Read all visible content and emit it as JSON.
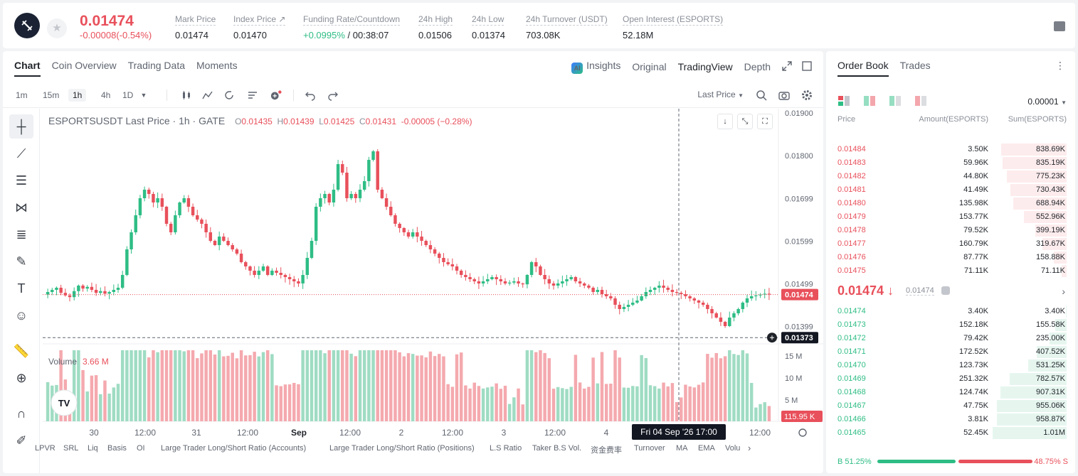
{
  "ticker": {
    "last_price": "0.01474",
    "change": "-0.00008(-0.54%)",
    "stats": [
      {
        "label": "Mark Price",
        "value": "0.01474"
      },
      {
        "label": "Index Price ↗",
        "value": "0.01470"
      },
      {
        "label": "Funding Rate/Countdown",
        "value_green": "+0.0995%",
        "value": " / 00:38:07"
      },
      {
        "label": "24h High",
        "value": "0.01506"
      },
      {
        "label": "24h Low",
        "value": "0.01374"
      },
      {
        "label": "24h Turnover (USDT)",
        "value": "703.08K"
      },
      {
        "label": "Open Interest (ESPORTS)",
        "value": "52.18M"
      }
    ]
  },
  "chart_tabs": [
    "Chart",
    "Coin Overview",
    "Trading Data",
    "Moments"
  ],
  "view_tabs": {
    "insights": "Insights",
    "original": "Original",
    "tradingview": "TradingView",
    "depth": "Depth",
    "ai_badge": "AI"
  },
  "timeframes": [
    "1m",
    "15m",
    "1h",
    "4h",
    "1D"
  ],
  "price_source": "Last Price",
  "legend": {
    "title": "ESPORTSUSDT Last Price · 1h · GATE",
    "o_lbl": "O",
    "o": "0.01435",
    "h_lbl": "H",
    "h": "0.01439",
    "l_lbl": "L",
    "l": "0.01425",
    "c_lbl": "C",
    "c": "0.01431",
    "chg": "-0.00005 (−0.28%)"
  },
  "volume_legend": {
    "label": "Volume",
    "value": "3.66 M"
  },
  "chart_data": {
    "type": "candlestick",
    "price_axis": [
      "0.01900",
      "0.01800",
      "0.01699",
      "0.01599",
      "0.01499",
      "0.01399"
    ],
    "volume_axis": [
      "15 M",
      "10 M",
      "5 M"
    ],
    "x_ticks": [
      "30",
      "12:00",
      "31",
      "12:00",
      "Sep",
      "12:00",
      "2",
      "12:00",
      "3",
      "12:00",
      "4",
      "12:00"
    ],
    "current_price_tag": "0.01474",
    "crosshair_price_tag": "0.01373",
    "crosshair_time": "Fri 04 Sep '26   17:00",
    "current_volume_tag": "115.95 K",
    "ylim": [
      0.0136,
      0.0191
    ],
    "closes": [
      0.0148,
      0.01485,
      0.0149,
      0.01478,
      0.01472,
      0.01468,
      0.01482,
      0.01495,
      0.01488,
      0.01492,
      0.01485,
      0.01478,
      0.01482,
      0.01476,
      0.0148,
      0.01485,
      0.0149,
      0.0152,
      0.0158,
      0.0162,
      0.0166,
      0.017,
      0.0172,
      0.0171,
      0.0169,
      0.017,
      0.0168,
      0.0164,
      0.0162,
      0.0166,
      0.0169,
      0.017,
      0.0168,
      0.0166,
      0.0165,
      0.0164,
      0.0162,
      0.016,
      0.0159,
      0.0161,
      0.016,
      0.0159,
      0.0158,
      0.0157,
      0.0155,
      0.0154,
      0.0153,
      0.0152,
      0.0153,
      0.0154,
      0.0152,
      0.0153,
      0.01525,
      0.0152,
      0.01515,
      0.0151,
      0.01505,
      0.015,
      0.0152,
      0.0156,
      0.016,
      0.0168,
      0.017,
      0.0171,
      0.0169,
      0.0172,
      0.0178,
      0.0176,
      0.017,
      0.0171,
      0.017,
      0.0172,
      0.0174,
      0.0179,
      0.0181,
      0.0172,
      0.017,
      0.0168,
      0.0166,
      0.0164,
      0.0163,
      0.0162,
      0.0161,
      0.0162,
      0.0161,
      0.016,
      0.0159,
      0.0158,
      0.0157,
      0.0156,
      0.0155,
      0.01545,
      0.0154,
      0.0153,
      0.0152,
      0.01515,
      0.0151,
      0.01505,
      0.015,
      0.01505,
      0.0151,
      0.01515,
      0.0151,
      0.01505,
      0.015,
      0.01502,
      0.01505,
      0.015,
      0.01498,
      0.0152,
      0.0155,
      0.0154,
      0.0152,
      0.0151,
      0.015,
      0.01495,
      0.015,
      0.01505,
      0.0151,
      0.01515,
      0.01505,
      0.015,
      0.01495,
      0.0149,
      0.0148,
      0.01485,
      0.01475,
      0.0147,
      0.01465,
      0.0145,
      0.0144,
      0.01445,
      0.0145,
      0.01455,
      0.0146,
      0.0147,
      0.0148,
      0.01485,
      0.0149,
      0.01495,
      0.0149,
      0.01485,
      0.0148,
      0.01478,
      0.01475,
      0.0147,
      0.01465,
      0.0146,
      0.01455,
      0.0145,
      0.0144,
      0.0143,
      0.0142,
      0.0141,
      0.014,
      0.0142,
      0.0143,
      0.0144,
      0.01455,
      0.01465,
      0.0147,
      0.01472,
      0.01474,
      0.01476,
      0.01474
    ]
  },
  "drawing_tools": [
    "crosshair-icon",
    "trend-line-icon",
    "horizontal-lines-icon",
    "pattern-icon",
    "fib-icon",
    "brush-icon",
    "text-icon",
    "emoji-icon",
    "ruler-icon",
    "zoom-in-icon",
    "magnet-icon",
    "pencil-icon"
  ],
  "indicators": [
    "LPVR",
    "SRL",
    "Liq",
    "Basis",
    "OI",
    "Large Trader Long/Short Ratio (Accounts)",
    "Large Trader Long/Short Ratio (Positions)",
    "L.S Ratio",
    "Taker B.S Vol.",
    "资金费率",
    "Turnover",
    "MA",
    "EMA",
    "Volu"
  ],
  "order_book": {
    "tabs": [
      "Order Book",
      "Trades"
    ],
    "precision": "0.00001",
    "headers": {
      "price": "Price",
      "amount": "Amount(ESPORTS)",
      "sum": "Sum(ESPORTS)"
    },
    "asks": [
      {
        "price": "0.01484",
        "amount": "3.50K",
        "sum": "838.69K",
        "depth": 0.88
      },
      {
        "price": "0.01483",
        "amount": "59.96K",
        "sum": "835.19K",
        "depth": 0.87
      },
      {
        "price": "0.01482",
        "amount": "44.80K",
        "sum": "775.23K",
        "depth": 0.81
      },
      {
        "price": "0.01481",
        "amount": "41.49K",
        "sum": "730.43K",
        "depth": 0.76
      },
      {
        "price": "0.01480",
        "amount": "135.98K",
        "sum": "688.94K",
        "depth": 0.72
      },
      {
        "price": "0.01479",
        "amount": "153.77K",
        "sum": "552.96K",
        "depth": 0.58
      },
      {
        "price": "0.01478",
        "amount": "79.52K",
        "sum": "399.19K",
        "depth": 0.42
      },
      {
        "price": "0.01477",
        "amount": "160.79K",
        "sum": "319.67K",
        "depth": 0.33
      },
      {
        "price": "0.01476",
        "amount": "87.77K",
        "sum": "158.88K",
        "depth": 0.17
      },
      {
        "price": "0.01475",
        "amount": "71.11K",
        "sum": "71.11K",
        "depth": 0.07
      }
    ],
    "mid_price": "0.01474 ↓",
    "mark_price": "0.01474",
    "bids": [
      {
        "price": "0.01474",
        "amount": "3.40K",
        "sum": "3.40K",
        "depth": 0.01
      },
      {
        "price": "0.01473",
        "amount": "152.18K",
        "sum": "155.58K",
        "depth": 0.15
      },
      {
        "price": "0.01472",
        "amount": "79.42K",
        "sum": "235.00K",
        "depth": 0.23
      },
      {
        "price": "0.01471",
        "amount": "172.52K",
        "sum": "407.52K",
        "depth": 0.4
      },
      {
        "price": "0.01470",
        "amount": "123.73K",
        "sum": "531.25K",
        "depth": 0.52
      },
      {
        "price": "0.01469",
        "amount": "251.32K",
        "sum": "782.57K",
        "depth": 0.77
      },
      {
        "price": "0.01468",
        "amount": "124.74K",
        "sum": "907.31K",
        "depth": 0.89
      },
      {
        "price": "0.01467",
        "amount": "47.75K",
        "sum": "955.06K",
        "depth": 0.94
      },
      {
        "price": "0.01466",
        "amount": "3.81K",
        "sum": "958.87K",
        "depth": 0.94
      },
      {
        "price": "0.01465",
        "amount": "52.45K",
        "sum": "1.01M",
        "depth": 1.0
      }
    ],
    "buy_ratio": "B 51.25%",
    "sell_ratio": "48.75% S",
    "buy_share": 0.5125
  },
  "colors": {
    "up": "#2ebd85",
    "down": "#e8505b",
    "text": "#1f2329",
    "muted": "#8a8f98"
  }
}
